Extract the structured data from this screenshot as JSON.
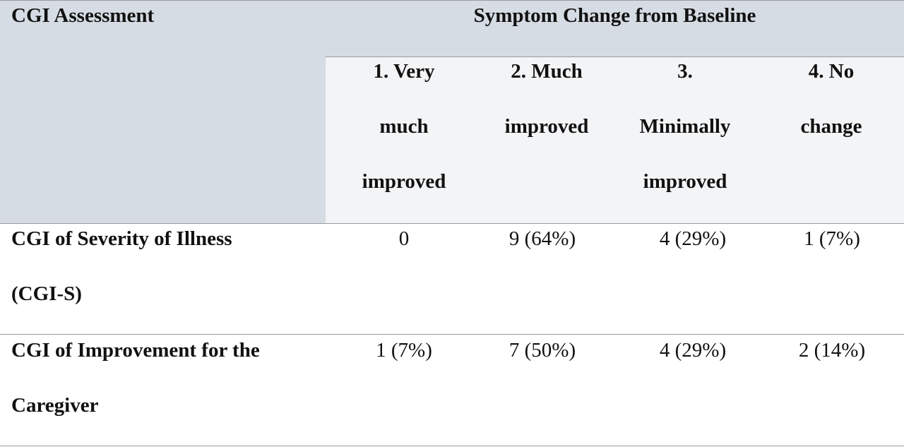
{
  "table": {
    "corner_header": "CGI Assessment",
    "span_header": "Symptom Change from Baseline",
    "columns": [
      {
        "lines": [
          "1. Very",
          "much",
          "improved"
        ]
      },
      {
        "lines": [
          "2. Much",
          "improved"
        ]
      },
      {
        "lines": [
          "3.",
          "Minimally",
          "improved"
        ]
      },
      {
        "lines": [
          "4. No",
          "change"
        ]
      }
    ],
    "rows": [
      {
        "label_lines": [
          "CGI of Severity of Illness",
          "(CGI-S)"
        ],
        "values": [
          "0",
          "9 (64%)",
          "4 (29%)",
          "1 (7%)"
        ]
      },
      {
        "label_lines": [
          "CGI of Improvement for the",
          "Caregiver"
        ],
        "values": [
          "1 (7%)",
          "7 (50%)",
          "4 (29%)",
          "2 (14%)"
        ]
      }
    ]
  },
  "colors": {
    "header_band": "#d6dce4",
    "subheader_band": "#f3f4f6",
    "rule": "#9a9a9a",
    "text": "#111111"
  }
}
